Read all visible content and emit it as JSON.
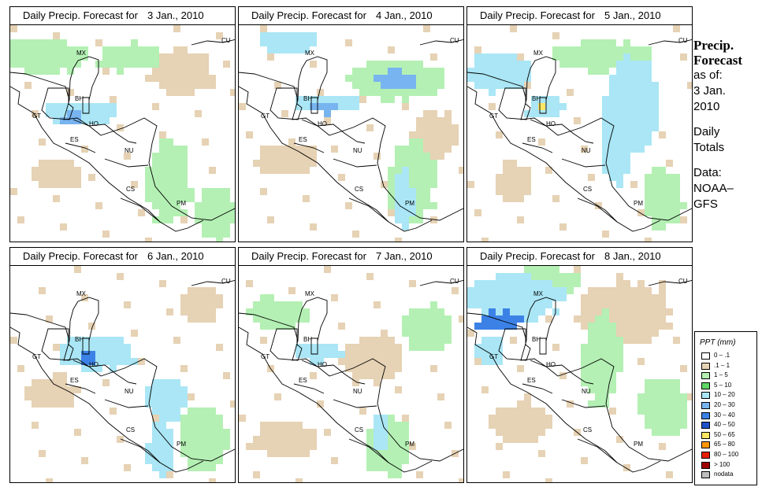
{
  "panels": [
    {
      "prefix": "Daily Precip. Forecast for",
      "date": "3 Jan., 2010"
    },
    {
      "prefix": "Daily Precip. Forecast for",
      "date": "4 Jan., 2010"
    },
    {
      "prefix": "Daily Precip. Forecast for",
      "date": "5 Jan., 2010"
    },
    {
      "prefix": "Daily Precip. Forecast for",
      "date": "6 Jan., 2010"
    },
    {
      "prefix": "Daily Precip. Forecast for",
      "date": "7 Jan., 2010"
    },
    {
      "prefix": "Daily Precip. Forecast for",
      "date": "8 Jan., 2010"
    }
  ],
  "country_labels": [
    "CU",
    "MX",
    "BH",
    "GT",
    "HO",
    "ES",
    "NU",
    "CS",
    "PM"
  ],
  "side_panel": {
    "heading_line1": "Precip.",
    "heading_line2": "Forecast",
    "asof_line1": "as of:",
    "asof_line2": "3 Jan.",
    "asof_line3": "2010",
    "daily_line1": "Daily",
    "daily_line2": "Totals",
    "data_line1": "Data:",
    "data_line2": "NOAA–",
    "data_line3": "GFS"
  },
  "legend": {
    "title": "PPT (mm)",
    "items": [
      {
        "label": "0 – .1",
        "color": "#ffffff"
      },
      {
        "label": ".1 – 1",
        "color": "#e6d2b4"
      },
      {
        "label": "1 – 5",
        "color": "#b4f0b4"
      },
      {
        "label": "5 – 10",
        "color": "#5fd764"
      },
      {
        "label": "10 – 20",
        "color": "#aae6f5"
      },
      {
        "label": "20 – 30",
        "color": "#78b4f0"
      },
      {
        "label": "30 – 40",
        "color": "#3c82e6"
      },
      {
        "label": "40 – 50",
        "color": "#1e50c8"
      },
      {
        "label": "50 – 65",
        "color": "#ffe664"
      },
      {
        "label": "65 – 80",
        "color": "#ff9600"
      },
      {
        "label": "80 – 100",
        "color": "#e61e00"
      },
      {
        "label": "> 100",
        "color": "#a00000"
      },
      {
        "label": "nodata",
        "color": "#bebebe"
      }
    ]
  }
}
